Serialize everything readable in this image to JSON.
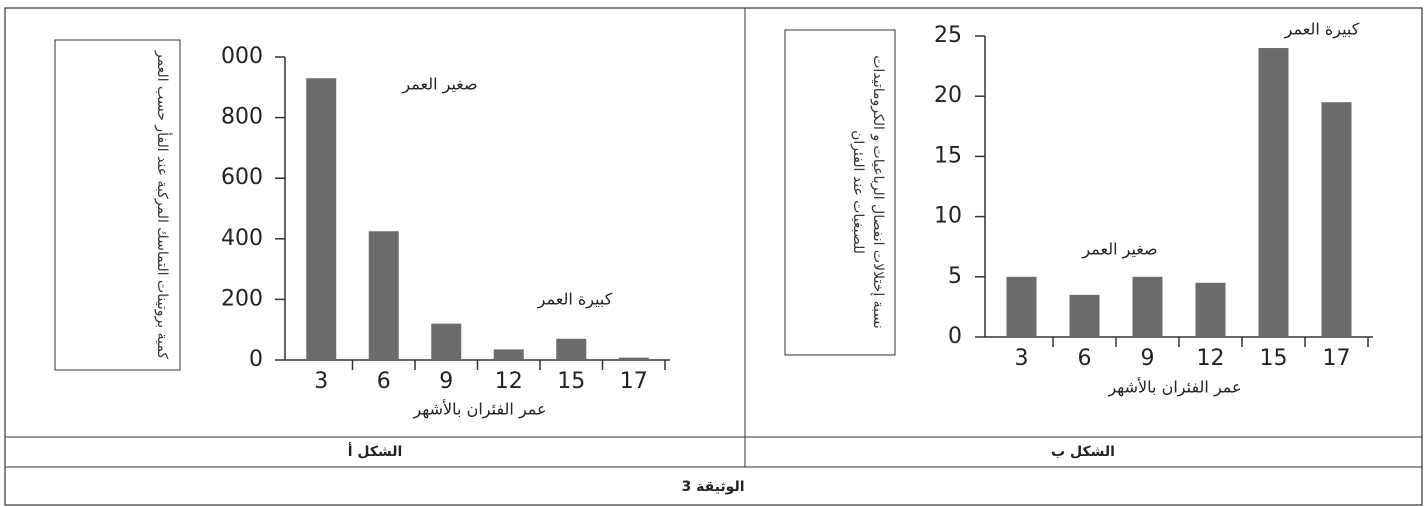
{
  "chart_data": [
    {
      "type": "bar",
      "caption": "الشكل أ",
      "y_label": "كمية بروتينات التماسك المركبة عند الفأر حسب العمر",
      "x_label": "عمر الفئران بالأشهر",
      "annotations": [
        "صغير العمر",
        "كبيرة العمر"
      ],
      "categories": [
        "3",
        "6",
        "9",
        "12",
        "15",
        "17"
      ],
      "values": [
        930,
        425,
        120,
        35,
        70,
        8
      ],
      "color": "#6b6b6b",
      "ylim": [
        0,
        1000
      ],
      "yticks": [
        0,
        200,
        400,
        600,
        800,
        {
          "value": 1000,
          "label": "000"
        }
      ],
      "grid": false
    },
    {
      "type": "bar",
      "caption": "الشكل ب",
      "y_label": "نسبة إختلالات انفصال الرباعيات و الكروماتيدات للصبغيات عند الفئران",
      "x_label": "عمر الفئران بالأشهر",
      "annotations": [
        "صغير العمر",
        "كبيرة العمر"
      ],
      "categories": [
        "3",
        "6",
        "9",
        "12",
        "15",
        "17"
      ],
      "values": [
        5,
        3.5,
        5,
        4.5,
        24,
        19.5
      ],
      "color": "#6b6b6b",
      "ylim": [
        0,
        25
      ],
      "yticks": [
        0,
        5,
        10,
        15,
        20,
        25
      ],
      "grid": false
    }
  ],
  "document_title": "الوثيقة 3"
}
